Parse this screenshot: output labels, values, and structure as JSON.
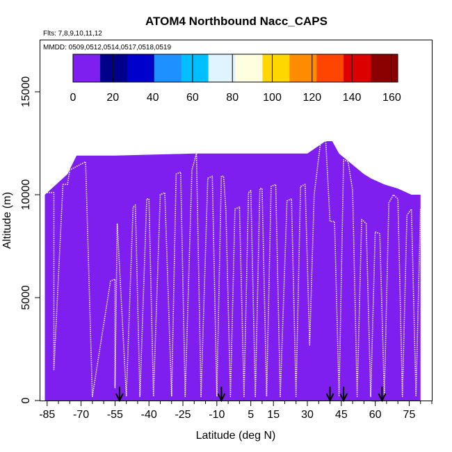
{
  "chart_data": {
    "type": "heatmap",
    "title": "ATOM4 Northbound Nacc_CAPS",
    "flights_note": "Flts: 7,8,9,10,11,12",
    "dates_note": "MMDD: 0509,0512,0514,0517,0518,0519",
    "xlabel": "Latitude (deg N)",
    "ylabel": "Altitude (m)",
    "xlim": [
      -88,
      85
    ],
    "ylim": [
      0,
      17500
    ],
    "x_ticks": [
      -85,
      -70,
      -55,
      -40,
      -25,
      -10,
      5,
      15,
      30,
      45,
      60,
      75
    ],
    "x_minor_ticks": [
      -80,
      -75,
      -65,
      -60,
      -50,
      -45,
      -35,
      -30,
      -20,
      -15,
      -5,
      0,
      10,
      20,
      25,
      35,
      40,
      50,
      55,
      65,
      70,
      80,
      85
    ],
    "y_ticks": [
      0,
      5000,
      10000,
      15000
    ],
    "colorbar": {
      "min": 0,
      "max": 163,
      "ticks": [
        0,
        20,
        40,
        60,
        80,
        100,
        120,
        140,
        160
      ],
      "colors": [
        "#7f1fef",
        "#00008b",
        "#0000cd",
        "#1e90ff",
        "#00bfff",
        "#e0f4ff",
        "#ffffe0",
        "#ffd700",
        "#ff8c00",
        "#ff4500",
        "#dc0000",
        "#8b0000"
      ]
    },
    "base_color": "#7f1fef",
    "coverage_upper_bound": [
      [
        -86,
        10000
      ],
      [
        -80,
        10600
      ],
      [
        -76,
        11000
      ],
      [
        -72,
        11900
      ],
      [
        -55,
        11900
      ],
      [
        -20,
        12000
      ],
      [
        -10,
        12000
      ],
      [
        5,
        12000
      ],
      [
        20,
        12000
      ],
      [
        30,
        12000
      ],
      [
        38,
        12600
      ],
      [
        41,
        12600
      ],
      [
        44,
        12000
      ],
      [
        55,
        11000
      ],
      [
        58,
        10800
      ],
      [
        64,
        10500
      ],
      [
        70,
        10300
      ],
      [
        76,
        10000
      ],
      [
        80,
        10000
      ],
      [
        80,
        0
      ]
    ],
    "enhanced_cells": [
      {
        "lat": 8,
        "alt": 2000,
        "value": 12
      },
      {
        "lat": 11,
        "alt": 1700,
        "value": 10
      },
      {
        "lat": 14,
        "alt": 2300,
        "value": 13
      },
      {
        "lat": 6,
        "alt": 2500,
        "value": 7
      },
      {
        "lat": 17,
        "alt": 1500,
        "value": 8
      },
      {
        "lat": 22,
        "alt": 1800,
        "value": 6
      },
      {
        "lat": 28,
        "alt": 2000,
        "value": 5
      },
      {
        "lat": -35,
        "alt": 3500,
        "value": 4
      },
      {
        "lat": -48,
        "alt": 3200,
        "value": 5
      },
      {
        "lat": 60,
        "alt": 300,
        "value": 9
      },
      {
        "lat": 55,
        "alt": 600,
        "value": 6
      }
    ],
    "flight_track": [
      [
        -86,
        10100
      ],
      [
        -82,
        10100
      ],
      [
        -82,
        1500
      ],
      [
        -78,
        10500
      ],
      [
        -76,
        10500
      ],
      [
        -75,
        11200
      ],
      [
        -68,
        11600
      ],
      [
        -65,
        200
      ],
      [
        -57,
        5800
      ],
      [
        -55,
        5900
      ],
      [
        -55,
        600
      ],
      [
        -54,
        8600
      ],
      [
        -50,
        200
      ],
      [
        -47,
        9400
      ],
      [
        -46,
        9500
      ],
      [
        -44,
        200
      ],
      [
        -41,
        9800
      ],
      [
        -40,
        9800
      ],
      [
        -38,
        200
      ],
      [
        -35,
        10000
      ],
      [
        -33,
        10100
      ],
      [
        -30,
        200
      ],
      [
        -28,
        11000
      ],
      [
        -26,
        11100
      ],
      [
        -24,
        200
      ],
      [
        -21,
        11200
      ],
      [
        -19,
        12000
      ],
      [
        -17,
        200
      ],
      [
        -14,
        10800
      ],
      [
        -12,
        10900
      ],
      [
        -10,
        200
      ],
      [
        -8,
        10900
      ],
      [
        -7,
        10900
      ],
      [
        -6,
        9200
      ],
      [
        -4,
        200
      ],
      [
        -2,
        9300
      ],
      [
        0,
        9400
      ],
      [
        2,
        200
      ],
      [
        4,
        10100
      ],
      [
        5,
        10200
      ],
      [
        7,
        200
      ],
      [
        9,
        10300
      ],
      [
        10,
        10300
      ],
      [
        12,
        200
      ],
      [
        14,
        10400
      ],
      [
        16,
        10500
      ],
      [
        18,
        200
      ],
      [
        21,
        9700
      ],
      [
        23,
        9800
      ],
      [
        25,
        200
      ],
      [
        27,
        10400
      ],
      [
        29,
        10500
      ],
      [
        31,
        2700
      ],
      [
        33,
        10000
      ],
      [
        36,
        12700
      ],
      [
        38,
        12900
      ],
      [
        40,
        8700
      ],
      [
        42,
        8700
      ],
      [
        44,
        200
      ],
      [
        46,
        11700
      ],
      [
        48,
        11600
      ],
      [
        50,
        10200
      ],
      [
        52,
        200
      ],
      [
        54,
        8800
      ],
      [
        56,
        8600
      ],
      [
        58,
        200
      ],
      [
        60,
        8200
      ],
      [
        62,
        8100
      ],
      [
        64,
        200
      ],
      [
        66,
        9600
      ],
      [
        68,
        10000
      ],
      [
        70,
        9800
      ],
      [
        72,
        200
      ],
      [
        74,
        9000
      ],
      [
        76,
        9300
      ],
      [
        78,
        200
      ],
      [
        80,
        9300
      ]
    ],
    "track_color": "#ffffff",
    "arrow_markers_lat": [
      -53,
      -8,
      40,
      46,
      63
    ]
  }
}
